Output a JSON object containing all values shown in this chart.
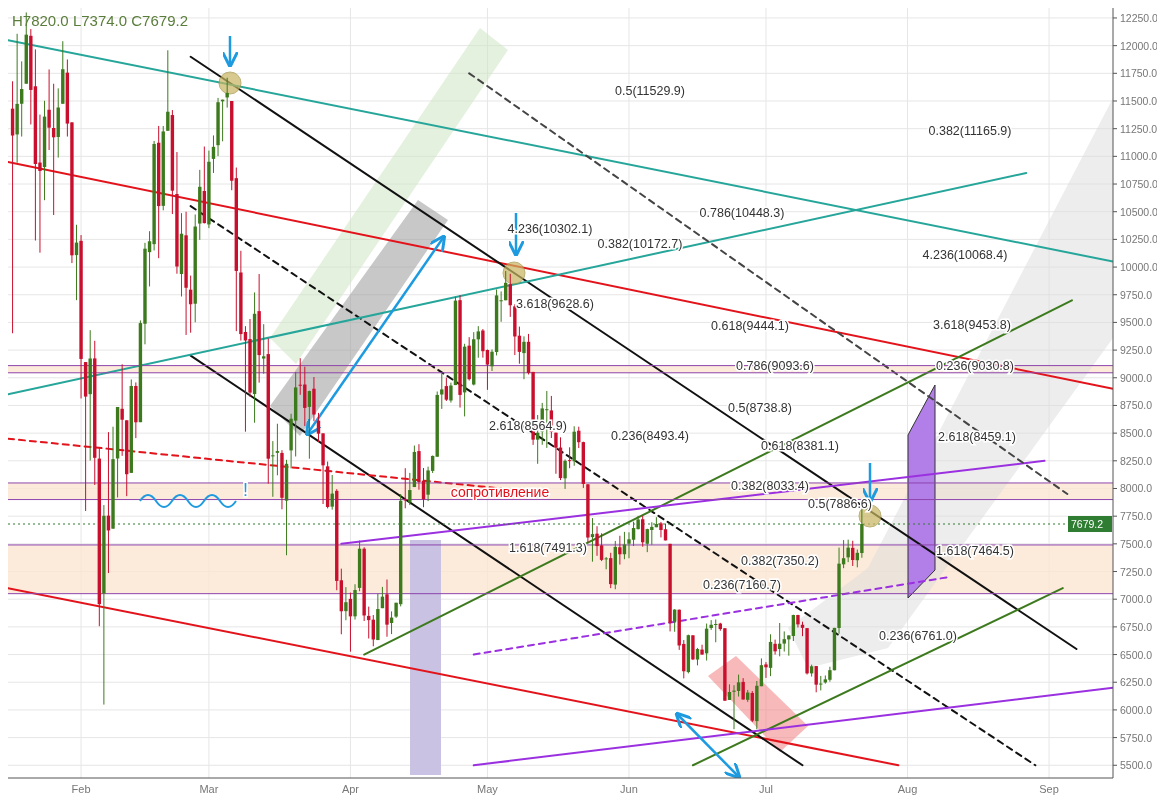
{
  "chart_data": {
    "type": "candlestick",
    "x": [
      "--01-17",
      "--01-18",
      "--01-19",
      "--01-20",
      "--01-21",
      "--01-22",
      "--01-23",
      "--01-24",
      "--01-25",
      "--01-26",
      "--01-27",
      "--01-28",
      "--01-29",
      "--01-30",
      "--01-31",
      "--02-01",
      "--02-02",
      "--02-03",
      "--02-04",
      "--02-05",
      "--02-06",
      "--02-07",
      "--02-08",
      "--02-09",
      "--02-10",
      "--02-11",
      "--02-12",
      "--02-13",
      "--02-14",
      "--02-15",
      "--02-16",
      "--02-17",
      "--02-18",
      "--02-19",
      "--02-20",
      "--02-21",
      "--02-22",
      "--02-23",
      "--02-24",
      "--02-25",
      "--02-26",
      "--02-27",
      "--02-28",
      "--03-01",
      "--03-02",
      "--03-03",
      "--03-04",
      "--03-05",
      "--03-06",
      "--03-07",
      "--03-08",
      "--03-09",
      "--03-10",
      "--03-11",
      "--03-12",
      "--03-13",
      "--03-14",
      "--03-15",
      "--03-16",
      "--03-17",
      "--03-18",
      "--03-19",
      "--03-20",
      "--03-21",
      "--03-22",
      "--03-23",
      "--03-24",
      "--03-25",
      "--03-26",
      "--03-27",
      "--03-28",
      "--03-29",
      "--03-30",
      "--03-31",
      "--04-01",
      "--04-02",
      "--04-03",
      "--04-04",
      "--04-05",
      "--04-06",
      "--04-07",
      "--04-08",
      "--04-09",
      "--04-10",
      "--04-11",
      "--04-12",
      "--04-13",
      "--04-14",
      "--04-15",
      "--04-16",
      "--04-17",
      "--04-18",
      "--04-19",
      "--04-20",
      "--04-21",
      "--04-22",
      "--04-23",
      "--04-24",
      "--04-25",
      "--04-26",
      "--04-27",
      "--04-28",
      "--04-29",
      "--04-30",
      "--05-01",
      "--05-02",
      "--05-03",
      "--05-04",
      "--05-05",
      "--05-06",
      "--05-07",
      "--05-08",
      "--05-09",
      "--05-10",
      "--05-11",
      "--05-12",
      "--05-13",
      "--05-14",
      "--05-15",
      "--05-16",
      "--05-17",
      "--05-18",
      "--05-19",
      "--05-20",
      "--05-21",
      "--05-22",
      "--05-23",
      "--05-24",
      "--05-25",
      "--05-26",
      "--05-27",
      "--05-28",
      "--05-29",
      "--05-30",
      "--05-31",
      "--06-01",
      "--06-02",
      "--06-03",
      "--06-04",
      "--06-05",
      "--06-06",
      "--06-07",
      "--06-08",
      "--06-09",
      "--06-10",
      "--06-11",
      "--06-12",
      "--06-13",
      "--06-14",
      "--06-15",
      "--06-16",
      "--06-17",
      "--06-18",
      "--06-19",
      "--06-20",
      "--06-21",
      "--06-22",
      "--06-23",
      "--06-24",
      "--06-25",
      "--06-26",
      "--06-27",
      "--06-28",
      "--06-29",
      "--06-30",
      "--07-01",
      "--07-02",
      "--07-03",
      "--07-04",
      "--07-05",
      "--07-06",
      "--07-07",
      "--07-08",
      "--07-09",
      "--07-10",
      "--07-11",
      "--07-12",
      "--07-13",
      "--07-14",
      "--07-15",
      "--07-16",
      "--07-17",
      "--07-18",
      "--07-19",
      "--07-20",
      "--07-21",
      "--07-22"
    ],
    "ohlc": [
      [
        11431,
        11678,
        9402,
        11188
      ],
      [
        11198,
        12107,
        10942,
        11474
      ],
      [
        11475,
        11858,
        11179,
        11608
      ],
      [
        11656,
        12300,
        11656,
        12099
      ],
      [
        12089,
        12150,
        11288,
        11600
      ],
      [
        11633,
        11966,
        10240,
        10931
      ],
      [
        10944,
        11377,
        10130,
        10868
      ],
      [
        10903,
        11502,
        10604,
        11359
      ],
      [
        11421,
        11785,
        11057,
        11259
      ],
      [
        11256,
        11656,
        10470,
        11172
      ],
      [
        11175,
        11614,
        10989,
        11441
      ],
      [
        11475,
        12040,
        11475,
        11787
      ],
      [
        11756,
        11875,
        11179,
        11296
      ],
      [
        11307,
        11308,
        10036,
        10106
      ],
      [
        10108,
        10382,
        9701,
        10221
      ],
      [
        10237,
        10289,
        8813,
        9170
      ],
      [
        9142,
        9142,
        7797,
        8830
      ],
      [
        8852,
        9430,
        8252,
        9174
      ],
      [
        9175,
        9334,
        8032,
        8277
      ],
      [
        8270,
        8365,
        6756,
        6955
      ],
      [
        7051,
        7850,
        6048,
        7754
      ],
      [
        7755,
        8509,
        7236,
        7621
      ],
      [
        7637,
        8558,
        7637,
        8265
      ],
      [
        8271,
        8736,
        7919,
        8736
      ],
      [
        8720,
        9122,
        8295,
        8621
      ],
      [
        8616,
        8616,
        7931,
        8129
      ],
      [
        8141,
        8985,
        8141,
        8926
      ],
      [
        8926,
        8958,
        8455,
        8598
      ],
      [
        8599,
        9518,
        8599,
        9494
      ],
      [
        9488,
        10219,
        9302,
        10166
      ],
      [
        10135,
        10324,
        9825,
        10233
      ],
      [
        10207,
        11139,
        10150,
        11112
      ],
      [
        11123,
        11275,
        10080,
        10551
      ],
      [
        10553,
        11274,
        10513,
        11225
      ],
      [
        11231,
        11958,
        11231,
        11403
      ],
      [
        11373,
        11418,
        10479,
        10690
      ],
      [
        10660,
        11039,
        9940,
        10005
      ],
      [
        9937,
        10487,
        9734,
        10301
      ],
      [
        10287,
        10500,
        9387,
        9813
      ],
      [
        9796,
        9923,
        9407,
        9664
      ],
      [
        9669,
        10475,
        9501,
        10366
      ],
      [
        10393,
        10878,
        10246,
        10725
      ],
      [
        10687,
        11089,
        10394,
        10397
      ],
      [
        10385,
        11052,
        10352,
        10951
      ],
      [
        10977,
        11189,
        10850,
        11086
      ],
      [
        11101,
        11528,
        11002,
        11489
      ],
      [
        11497,
        11512,
        11136,
        11512
      ],
      [
        11532,
        11710,
        11440,
        11573
      ],
      [
        11500,
        11500,
        10694,
        10780
      ],
      [
        10803,
        10899,
        9421,
        9965
      ],
      [
        9951,
        10147,
        9336,
        9395
      ],
      [
        9414,
        9466,
        8513,
        9337
      ],
      [
        9350,
        9531,
        8828,
        8866
      ],
      [
        8853,
        9771,
        8594,
        9578
      ],
      [
        9602,
        9937,
        8956,
        9205
      ],
      [
        9174,
        9484,
        9036,
        9194
      ],
      [
        9214,
        9355,
        8044,
        8269
      ],
      [
        8290,
        8428,
        7925,
        8300
      ],
      [
        8322,
        8585,
        8119,
        8338
      ],
      [
        8321,
        8346,
        7812,
        7916
      ],
      [
        7890,
        8259,
        7397,
        8223
      ],
      [
        8344,
        8675,
        8182,
        8630
      ],
      [
        8613,
        9051,
        8289,
        8913
      ],
      [
        8937,
        9177,
        8846,
        8929
      ],
      [
        8939,
        9100,
        8564,
        8728
      ],
      [
        8737,
        8884,
        8269,
        8880
      ],
      [
        8901,
        9007,
        8608,
        8668
      ],
      [
        8613,
        8683,
        8420,
        8495
      ],
      [
        8498,
        8499,
        7860,
        8209
      ],
      [
        8200,
        8243,
        7820,
        7833
      ],
      [
        7836,
        8122,
        7809,
        7954
      ],
      [
        7979,
        7994,
        7081,
        7165
      ],
      [
        7171,
        7276,
        6683,
        6891
      ],
      [
        6892,
        7109,
        6810,
        6973
      ],
      [
        7003,
        7060,
        6526,
        6845
      ],
      [
        6845,
        7135,
        6816,
        7083
      ],
      [
        7102,
        7530,
        7072,
        7456
      ],
      [
        7456,
        7469,
        6803,
        6853
      ],
      [
        6849,
        6933,
        6645,
        6811
      ],
      [
        6815,
        6857,
        6575,
        6636
      ],
      [
        6631,
        7050,
        6631,
        6911
      ],
      [
        6919,
        7111,
        6919,
        7023
      ],
      [
        7044,
        7178,
        6661,
        6770
      ],
      [
        6785,
        6890,
        6685,
        6834
      ],
      [
        6843,
        6968,
        6831,
        6968
      ],
      [
        6955,
        7950,
        6935,
        7889
      ],
      [
        7901,
        8183,
        7821,
        7895
      ],
      [
        7874,
        8141,
        7850,
        7986
      ],
      [
        8013,
        8388,
        8013,
        8330
      ],
      [
        8338,
        8400,
        7989,
        8058
      ],
      [
        8071,
        8185,
        7831,
        7902
      ],
      [
        7944,
        8197,
        7886,
        8163
      ],
      [
        8159,
        8298,
        8140,
        8294
      ],
      [
        8287,
        8876,
        8287,
        8845
      ],
      [
        8849,
        9036,
        8719,
        8895
      ],
      [
        8925,
        9001,
        8790,
        8802
      ],
      [
        8795,
        8956,
        8776,
        8930
      ],
      [
        8934,
        9732,
        8934,
        9697
      ],
      [
        9701,
        9745,
        8731,
        8845
      ],
      [
        8868,
        9307,
        8651,
        9281
      ],
      [
        9290,
        9367,
        8975,
        8987
      ],
      [
        8939,
        9412,
        8931,
        9348
      ],
      [
        9347,
        9466,
        9181,
        9419
      ],
      [
        9427,
        9440,
        9182,
        9240
      ],
      [
        9251,
        9255,
        8891,
        9119
      ],
      [
        9104,
        9256,
        9061,
        9235
      ],
      [
        9233,
        9798,
        9202,
        9744
      ],
      [
        9696,
        9780,
        9506,
        9700
      ],
      [
        9700,
        9964,
        9700,
        9858
      ],
      [
        9846,
        9939,
        9550,
        9655
      ],
      [
        9645,
        9665,
        9205,
        9373
      ],
      [
        9380,
        9462,
        9127,
        9234
      ],
      [
        9223,
        9374,
        8987,
        9325
      ],
      [
        9325,
        9396,
        9030,
        9043
      ],
      [
        9053,
        9053,
        8394,
        8441
      ],
      [
        8441,
        8664,
        8223,
        8504
      ],
      [
        8515,
        8773,
        8395,
        8723
      ],
      [
        8713,
        8881,
        8367,
        8716
      ],
      [
        8705,
        8836,
        8456,
        8510
      ],
      [
        8504,
        8504,
        8133,
        8368
      ],
      [
        8370,
        8462,
        8076,
        8094
      ],
      [
        8092,
        8263,
        7996,
        8250
      ],
      [
        8256,
        8372,
        8183,
        8247
      ],
      [
        8246,
        8562,
        8205,
        8513
      ],
      [
        8522,
        8558,
        8365,
        8418
      ],
      [
        8419,
        8423,
        8005,
        8041
      ],
      [
        8038,
        8038,
        7509,
        7557
      ],
      [
        7561,
        7733,
        7339,
        7588
      ],
      [
        7592,
        7659,
        7392,
        7480
      ],
      [
        7486,
        7595,
        7344,
        7355
      ],
      [
        7362,
        7381,
        7270,
        7369
      ],
      [
        7371,
        7419,
        7100,
        7136
      ],
      [
        7132,
        7526,
        7090,
        7472
      ],
      [
        7469,
        7573,
        7313,
        7406
      ],
      [
        7406,
        7608,
        7361,
        7494
      ],
      [
        7501,
        7604,
        7370,
        7541
      ],
      [
        7537,
        7700,
        7480,
        7643
      ],
      [
        7633,
        7753,
        7630,
        7720
      ],
      [
        7722,
        7754,
        7474,
        7514
      ],
      [
        7501,
        7637,
        7425,
        7633
      ],
      [
        7625,
        7695,
        7492,
        7653
      ],
      [
        7650,
        7741,
        7650,
        7679
      ],
      [
        7685,
        7698,
        7558,
        7625
      ],
      [
        7632,
        7683,
        7531,
        7531
      ],
      [
        7500,
        7500,
        6709,
        6786
      ],
      [
        6799,
        6910,
        6706,
        6906
      ],
      [
        6905,
        6907,
        6542,
        6582
      ],
      [
        6596,
        6631,
        6285,
        6349
      ],
      [
        6342,
        6680,
        6330,
        6675
      ],
      [
        6674,
        6674,
        6450,
        6456
      ],
      [
        6455,
        6560,
        6402,
        6550
      ],
      [
        6545,
        6589,
        6499,
        6500
      ],
      [
        6511,
        6780,
        6446,
        6734
      ],
      [
        6740,
        6811,
        6723,
        6769
      ],
      [
        6770,
        6817,
        6611,
        6776
      ],
      [
        6780,
        6787,
        6715,
        6730
      ],
      [
        6738,
        6738,
        6083,
        6083
      ],
      [
        6090,
        6231,
        6090,
        6162
      ],
      [
        6164,
        6223,
        5826,
        6174
      ],
      [
        6171,
        6319,
        6121,
        6249
      ],
      [
        6253,
        6287,
        6093,
        6094
      ],
      [
        6091,
        6180,
        6072,
        6157
      ],
      [
        6153,
        6170,
        5890,
        5903
      ],
      [
        5899,
        6261,
        5826,
        6218
      ],
      [
        6214,
        6465,
        6214,
        6404
      ],
      [
        6411,
        6432,
        6289,
        6385
      ],
      [
        6380,
        6683,
        6305,
        6614
      ],
      [
        6597,
        6635,
        6500,
        6529
      ],
      [
        6550,
        6785,
        6484,
        6598
      ],
      [
        6599,
        6709,
        6527,
        6639
      ],
      [
        6637,
        6674,
        6490,
        6673
      ],
      [
        6668,
        6860,
        6622,
        6857
      ],
      [
        6857,
        6859,
        6744,
        6773
      ],
      [
        6769,
        6797,
        6666,
        6741
      ],
      [
        6739,
        6740,
        6320,
        6330
      ],
      [
        6330,
        6409,
        6301,
        6394
      ],
      [
        6396,
        6396,
        6159,
        6228
      ],
      [
        6231,
        6307,
        6176,
        6238
      ],
      [
        6248,
        6311,
        6237,
        6276
      ],
      [
        6272,
        6390,
        6255,
        6359
      ],
      [
        6358,
        6741,
        6358,
        6741
      ],
      [
        6740,
        7466,
        6688,
        7321
      ],
      [
        7315,
        7534,
        7280,
        7370
      ],
      [
        7378,
        7538,
        7335,
        7466
      ],
      [
        7464,
        7528,
        7300,
        7354
      ],
      [
        7352,
        7449,
        7288,
        7419
      ],
      [
        7417,
        7820,
        7374,
        7679
      ]
    ],
    "series": [
      {
        "type": "line",
        "x": [
          "--01-16",
          "--09-15"
        ],
        "values": [
          10950,
          8900
        ],
        "color": "#e3131b"
      },
      {
        "type": "line",
        "x": [
          "--01-16",
          "--07-30"
        ],
        "values": [
          7100,
          5500
        ],
        "color": "#e3131b"
      },
      {
        "type": "line",
        "x": [
          "--02-25",
          "--09-07"
        ],
        "values": [
          11900,
          6550
        ],
        "color": "#111111"
      },
      {
        "type": "line",
        "x": [
          "--02-25",
          "--07-09"
        ],
        "values": [
          9200,
          5500
        ],
        "color": "#111111"
      },
      {
        "type": "line",
        "x": [
          "--02-25",
          "--08-29"
        ],
        "values": [
          10550,
          5500
        ],
        "color": "#111111",
        "line_style": "dashed"
      },
      {
        "type": "line",
        "x": [
          "--04-04",
          "--09-06"
        ],
        "values": [
          6500,
          9700
        ],
        "color": "#3d7a1e"
      },
      {
        "type": "line",
        "x": [
          "--06-15",
          "--09-04"
        ],
        "values": [
          5500,
          7100
        ],
        "color": "#3d7a1e"
      },
      {
        "type": "line",
        "x": [
          "--03-30",
          "--08-31"
        ],
        "values": [
          7500,
          8250
        ],
        "color": "#9b30e0"
      },
      {
        "type": "line",
        "x": [
          "--04-28",
          "--09-15"
        ],
        "values": [
          5500,
          6200
        ],
        "color": "#9b30e0"
      },
      {
        "type": "line",
        "x": [
          "--04-28",
          "--08-10"
        ],
        "values": [
          6500,
          7200
        ],
        "color": "#9b30e0",
        "line_style": "dashed"
      },
      {
        "type": "line",
        "x": [
          "--01-16",
          "--09-15"
        ],
        "values": [
          12050,
          10050
        ],
        "color": "#26a69a"
      },
      {
        "type": "line",
        "x": [
          "--01-16",
          "--08-27"
        ],
        "values": [
          8850,
          10850
        ],
        "color": "#26a69a"
      },
      {
        "type": "line",
        "x": [
          "--01-16",
          "--05-04"
        ],
        "values": [
          8450,
          8000
        ],
        "color": "#e3131b",
        "line_style": "dashed"
      },
      {
        "type": "line",
        "x": [
          "--04-27",
          "--09-05"
        ],
        "values": [
          11750,
          7950
        ],
        "color": "#444444",
        "line_style": "dashed"
      }
    ],
    "bands": [
      {
        "axis": "y",
        "from": 7900,
        "to": 8050,
        "color": "#fbe6d2"
      },
      {
        "axis": "y",
        "from": 7050,
        "to": 7490,
        "color": "#fbe6d2"
      },
      {
        "axis": "y",
        "from": 9045,
        "to": 9110,
        "color": "#fbe6d2"
      }
    ],
    "ref_lines": [
      {
        "axis": "y",
        "value": 7679.2,
        "label": "7679.2",
        "color": "#2e7d32",
        "line_style": "dotted"
      },
      {
        "axis": "y",
        "value": 8050,
        "color": "#8e44ad"
      },
      {
        "axis": "y",
        "value": 7900,
        "color": "#8e44ad"
      },
      {
        "axis": "y",
        "value": 7490,
        "color": "#8e44ad"
      },
      {
        "axis": "y",
        "value": 7050,
        "color": "#8e44ad"
      },
      {
        "axis": "y",
        "value": 9110,
        "color": "#8e44ad"
      },
      {
        "axis": "y",
        "value": 9045,
        "color": "#8e44ad"
      }
    ],
    "annotations": [
      "H7820.0  L7374.0  C7679.2",
      "0.5(11529.9)",
      "0.382(11165.9)",
      "0.786(10448.3)",
      "4.236(10302.1)",
      "0.382(10172.7)",
      "4.236(10068.4)",
      "3.618(9628.6)",
      "0.618(9444.1)",
      "3.618(9453.8)",
      "0.786(9093.6)",
      "0.236(9030.8)",
      "0.5(8738.8)",
      "2.618(8564.9)",
      "0.236(8493.4)",
      "0.618(8381.1)",
      "2.618(8459.1)",
      "0.382(8033.4)",
      "0.5(7886.6)",
      "1.618(7491.3)",
      "1.618(7464.5)",
      "0.382(7350.2)",
      "0.236(7160.7)",
      "0.236(6761.0)",
      "сопротивление",
      {
        "text": "!",
        "x": "--03-09",
        "y": 7900
      }
    ],
    "xlim": [
      "--01-16",
      "--09-15"
    ],
    "xticks": [
      {
        "value": "--02-01",
        "label": "Feb"
      },
      {
        "value": "--03-01",
        "label": "Mar"
      },
      {
        "value": "--04-01",
        "label": "Apr"
      },
      {
        "value": "--05-01",
        "label": "May"
      },
      {
        "value": "--06-01",
        "label": "Jun"
      },
      {
        "value": "--07-01",
        "label": "Jul"
      },
      {
        "value": "--08-01",
        "label": "Aug"
      },
      {
        "value": "--09-01",
        "label": "Sep"
      }
    ],
    "ylim": [
      5385,
      12340
    ],
    "yticks": [
      {
        "value": 5500,
        "label": "5500.0"
      },
      {
        "value": 5750,
        "label": "5750.0"
      },
      {
        "value": 6000,
        "label": "6000.0"
      },
      {
        "value": 6250,
        "label": "6250.0"
      },
      {
        "value": 6500,
        "label": "6500.0"
      },
      {
        "value": 6750,
        "label": "6750.0"
      },
      {
        "value": 7000,
        "label": "7000.0"
      },
      {
        "value": 7250,
        "label": "7250.0"
      },
      {
        "value": 7500,
        "label": "7500.0"
      },
      {
        "value": 7750,
        "label": "7750.0"
      },
      {
        "value": 8000,
        "label": "8000.0"
      },
      {
        "value": 8250,
        "label": "8250.0"
      },
      {
        "value": 8500,
        "label": "8500.0"
      },
      {
        "value": 8750,
        "label": "8750.0"
      },
      {
        "value": 9000,
        "label": "9000.0"
      },
      {
        "value": 9250,
        "label": "9250.0"
      },
      {
        "value": 9500,
        "label": "9500.0"
      },
      {
        "value": 9750,
        "label": "9750.0"
      },
      {
        "value": 10000,
        "label": "10000.0"
      },
      {
        "value": 10250,
        "label": "10250.0"
      },
      {
        "value": 10500,
        "label": "10500.0"
      },
      {
        "value": 10750,
        "label": "10750.0"
      },
      {
        "value": 11000,
        "label": "11000.0"
      },
      {
        "value": 11250,
        "label": "11250.0"
      },
      {
        "value": 11500,
        "label": "11500.0"
      },
      {
        "value": 11750,
        "label": "11750.0"
      },
      {
        "value": 12000,
        "label": "12000.0"
      },
      {
        "value": 12250,
        "label": "12250.0"
      }
    ],
    "grid": true
  }
}
